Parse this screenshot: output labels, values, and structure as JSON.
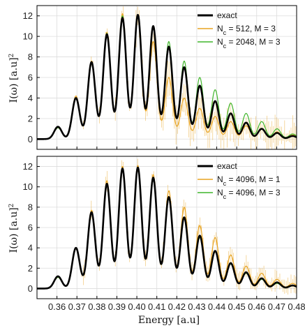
{
  "figure": {
    "xlabel": "Energy [a.u]",
    "ylabel_main": "I(ω) [a.u]",
    "ylabel_sup": "2"
  },
  "colors": {
    "exact": "#000000",
    "orange": "#E8A320",
    "green": "#3FB52A",
    "grid": "#dcdcdc",
    "axis": "#000000"
  },
  "chart_data": [
    {
      "type": "line",
      "panel": "top",
      "xlim": [
        0.35,
        0.48
      ],
      "ylim": [
        -1,
        13
      ],
      "xticks": [
        0.36,
        0.37,
        0.38,
        0.39,
        0.4,
        0.41,
        0.42,
        0.43,
        0.44,
        0.45,
        0.46,
        0.47,
        0.48
      ],
      "yticks": [
        0,
        2,
        4,
        6,
        8,
        10,
        12
      ],
      "grid": true,
      "legend_position": "top-right",
      "peak_x": [
        0.3605,
        0.3695,
        0.3773,
        0.385,
        0.3928,
        0.4005,
        0.4082,
        0.416,
        0.4237,
        0.4315,
        0.4392,
        0.447,
        0.4547,
        0.4625,
        0.4702,
        0.478
      ],
      "series": [
        {
          "name": "exact",
          "legend_label": "exact",
          "color": "#000000",
          "peak_heights": [
            1.2,
            4.0,
            7.5,
            10.2,
            11.8,
            12.1,
            11.0,
            9.0,
            7.0,
            5.2,
            3.7,
            2.5,
            1.6,
            1.0,
            0.6,
            0.3
          ]
        },
        {
          "name": "orange",
          "legend_label": "N_c = 512, M = 3",
          "label_html": "N<sub>c</sub> = 512, M = 3",
          "color": "#E8A320",
          "peak_heights": [
            1.1,
            4.2,
            7.6,
            10.4,
            12.2,
            12.0,
            9.5,
            6.0,
            4.0,
            3.0,
            2.2,
            1.7,
            1.3,
            1.0,
            0.7,
            0.4
          ]
        },
        {
          "name": "green",
          "legend_label": "N_c = 2048, M = 3",
          "label_html": "N<sub>c</sub> = 2048, M = 3",
          "color": "#3FB52A",
          "peak_heights": [
            1.1,
            4.0,
            7.4,
            10.3,
            12.0,
            11.9,
            11.0,
            9.5,
            7.6,
            6.0,
            4.8,
            3.5,
            2.5,
            1.7,
            1.0,
            0.5
          ]
        }
      ]
    },
    {
      "type": "line",
      "panel": "bottom",
      "xlim": [
        0.35,
        0.48
      ],
      "ylim": [
        -1,
        13
      ],
      "xticks": [
        0.36,
        0.37,
        0.38,
        0.39,
        0.4,
        0.41,
        0.42,
        0.43,
        0.44,
        0.45,
        0.46,
        0.47,
        0.48
      ],
      "yticks": [
        0,
        2,
        4,
        6,
        8,
        10,
        12
      ],
      "grid": true,
      "legend_position": "top-right",
      "peak_x": [
        0.3605,
        0.3695,
        0.3773,
        0.385,
        0.3928,
        0.4005,
        0.4082,
        0.416,
        0.4237,
        0.4315,
        0.4392,
        0.447,
        0.4547,
        0.4625,
        0.4702,
        0.478
      ],
      "series": [
        {
          "name": "exact",
          "legend_label": "exact",
          "color": "#000000",
          "peak_heights": [
            1.2,
            4.0,
            7.5,
            10.3,
            11.8,
            11.9,
            10.9,
            9.0,
            7.0,
            5.2,
            3.7,
            2.5,
            1.6,
            1.0,
            0.6,
            0.3
          ]
        },
        {
          "name": "orange",
          "legend_label": "N_c = 4096, M = 1",
          "label_html": "N<sub>c</sub> = 4096, M = 1",
          "color": "#E8A320",
          "peak_heights": [
            1.1,
            3.9,
            7.7,
            10.6,
            12.0,
            12.1,
            11.2,
            9.6,
            8.0,
            6.2,
            5.0,
            3.3,
            2.2,
            1.5,
            0.9,
            0.5
          ]
        },
        {
          "name": "green",
          "legend_label": "N_c = 4096, M = 3",
          "label_html": "N<sub>c</sub> = 4096, M = 3",
          "color": "#3FB52A",
          "peak_heights": [
            1.1,
            4.0,
            7.5,
            10.3,
            11.8,
            11.8,
            10.7,
            8.8,
            6.9,
            5.0,
            3.6,
            2.4,
            1.5,
            0.9,
            0.5,
            0.3
          ]
        }
      ]
    }
  ]
}
